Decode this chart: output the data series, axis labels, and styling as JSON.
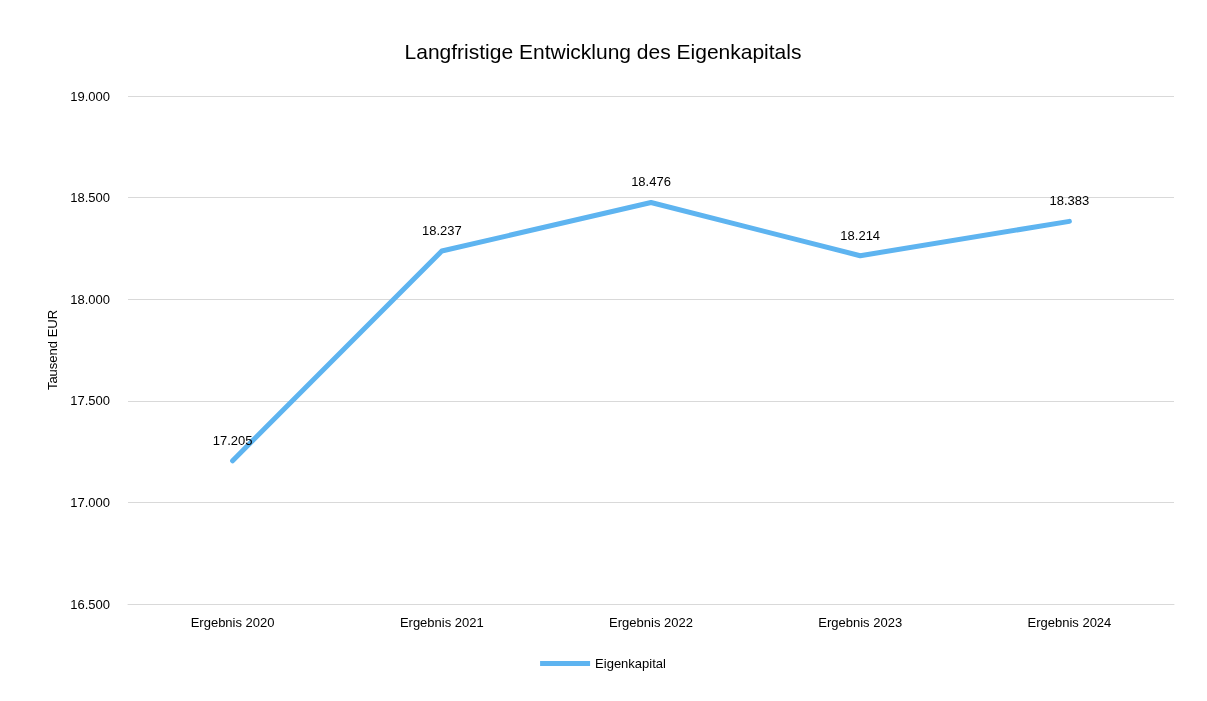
{
  "chart_data": {
    "type": "line",
    "title": "Langfristige Entwicklung des Eigenkapitals",
    "ylabel": "Tausend EUR",
    "categories": [
      "Ergebnis 2020",
      "Ergebnis 2021",
      "Ergebnis 2022",
      "Ergebnis 2023",
      "Ergebnis 2024"
    ],
    "series": [
      {
        "name": "Eigenkapital",
        "color": "#5eb4f0",
        "values": [
          17205,
          18237,
          18476,
          18214,
          18383
        ],
        "value_labels": [
          "17.205",
          "18.237",
          "18.476",
          "18.214",
          "18.383"
        ]
      }
    ],
    "ylim": [
      16500,
      19000
    ],
    "yticks": [
      {
        "value": 16500,
        "label": "16.500"
      },
      {
        "value": 17000,
        "label": "17.000"
      },
      {
        "value": 17500,
        "label": "17.500"
      },
      {
        "value": 18000,
        "label": "18.000"
      },
      {
        "value": 18500,
        "label": "18.500"
      },
      {
        "value": 19000,
        "label": "19.000"
      }
    ],
    "grid": "y",
    "legend": "bottom",
    "marker": "none",
    "line_style": "solid"
  }
}
